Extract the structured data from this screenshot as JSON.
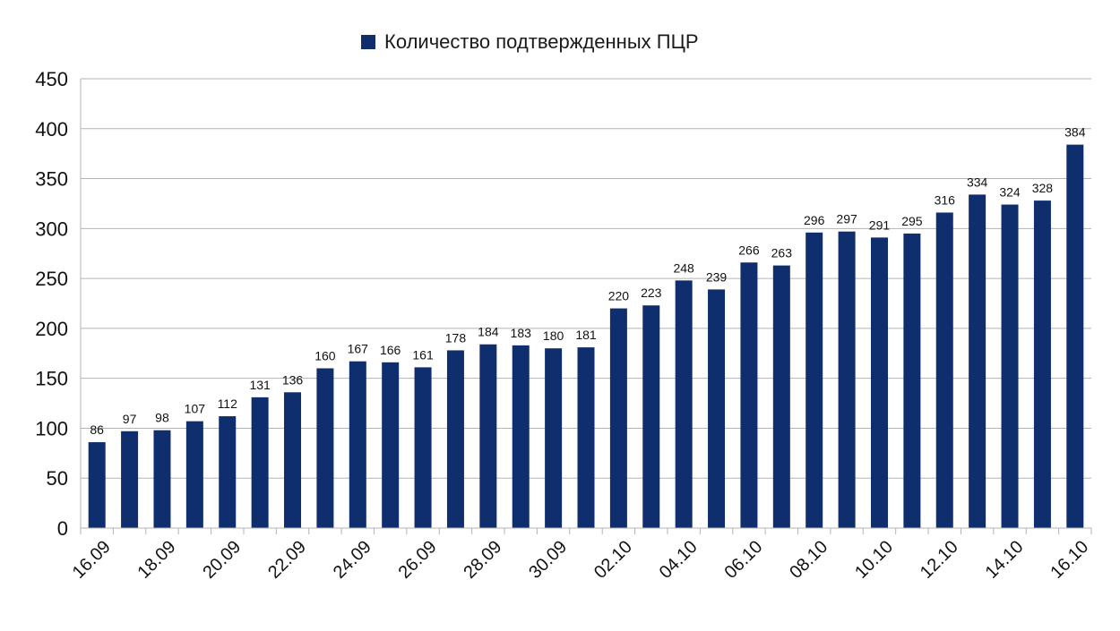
{
  "legend": {
    "label": "Количество подтвержденных ПЦР"
  },
  "colors": {
    "bar": "#0f2e6e",
    "grid": "#b3b3b3",
    "axis": "#b3b3b3"
  },
  "chart_data": {
    "type": "bar",
    "title": "",
    "xlabel": "",
    "ylabel": "",
    "ylim": [
      0,
      450
    ],
    "yticks": [
      0,
      50,
      100,
      150,
      200,
      250,
      300,
      350,
      400,
      450
    ],
    "grid": true,
    "legend_position": "top",
    "x_tick_labels": [
      "16.09",
      "18.09",
      "20.09",
      "22.09",
      "24.09",
      "26.09",
      "28.09",
      "30.09",
      "02.10",
      "04.10",
      "06.10",
      "08.10",
      "10.10",
      "12.10",
      "14.10",
      "16.10"
    ],
    "series": [
      {
        "name": "Количество подтвержденных ПЦР",
        "values": [
          86,
          97,
          98,
          107,
          112,
          131,
          136,
          160,
          167,
          166,
          161,
          178,
          184,
          183,
          180,
          181,
          220,
          223,
          248,
          239,
          266,
          263,
          296,
          297,
          291,
          295,
          316,
          334,
          324,
          328,
          384
        ]
      }
    ]
  }
}
